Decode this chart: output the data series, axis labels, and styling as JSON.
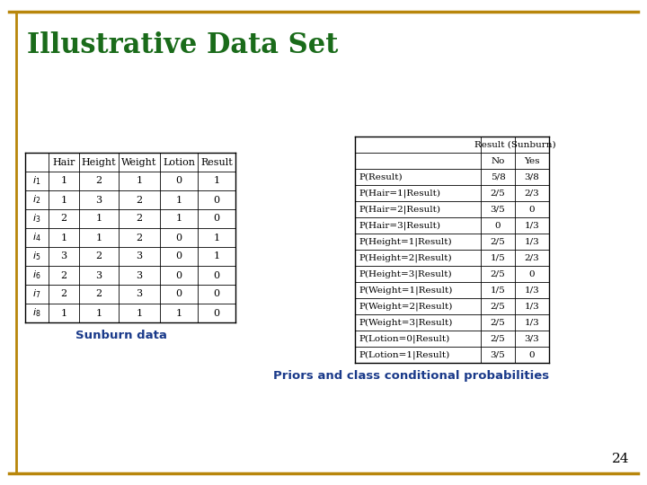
{
  "title": "Illustrative Data Set",
  "title_color": "#1a6b1a",
  "background_color": "#ffffff",
  "border_color": "#b8860b",
  "subtitle_left": "Sunburn data",
  "subtitle_right": "Priors and class conditional probabilities",
  "page_number": "24",
  "left_table": {
    "headers": [
      "",
      "Hair",
      "Height",
      "Weight",
      "Lotion",
      "Result"
    ],
    "rows": [
      [
        "1",
        "1",
        "2",
        "1",
        "0",
        "1"
      ],
      [
        "2",
        "1",
        "3",
        "2",
        "1",
        "0"
      ],
      [
        "3",
        "2",
        "1",
        "2",
        "1",
        "0"
      ],
      [
        "4",
        "1",
        "1",
        "2",
        "0",
        "1"
      ],
      [
        "5",
        "3",
        "2",
        "3",
        "0",
        "1"
      ],
      [
        "6",
        "2",
        "3",
        "3",
        "0",
        "0"
      ],
      [
        "7",
        "2",
        "2",
        "3",
        "0",
        "0"
      ],
      [
        "8",
        "1",
        "1",
        "1",
        "1",
        "0"
      ]
    ]
  },
  "right_table": {
    "top_header": "Result (Sunburn)",
    "sub_headers": [
      "No",
      "Yes"
    ],
    "rows": [
      [
        "P(Result)",
        "5/8",
        "3/8"
      ],
      [
        "P(Hair=1|Result)",
        "2/5",
        "2/3"
      ],
      [
        "P(Hair=2|Result)",
        "3/5",
        "0"
      ],
      [
        "P(Hair=3|Result)",
        "0",
        "1/3"
      ],
      [
        "P(Height=1|Result)",
        "2/5",
        "1/3"
      ],
      [
        "P(Height=2|Result)",
        "1/5",
        "2/3"
      ],
      [
        "P(Height=3|Result)",
        "2/5",
        "0"
      ],
      [
        "P(Weight=1|Result)",
        "1/5",
        "1/3"
      ],
      [
        "P(Weight=2|Result)",
        "2/5",
        "1/3"
      ],
      [
        "P(Weight=3|Result)",
        "2/5",
        "1/3"
      ],
      [
        "P(Lotion=0|Result)",
        "2/5",
        "3/3"
      ],
      [
        "P(Lotion=1|Result)",
        "3/5",
        "0"
      ]
    ]
  }
}
